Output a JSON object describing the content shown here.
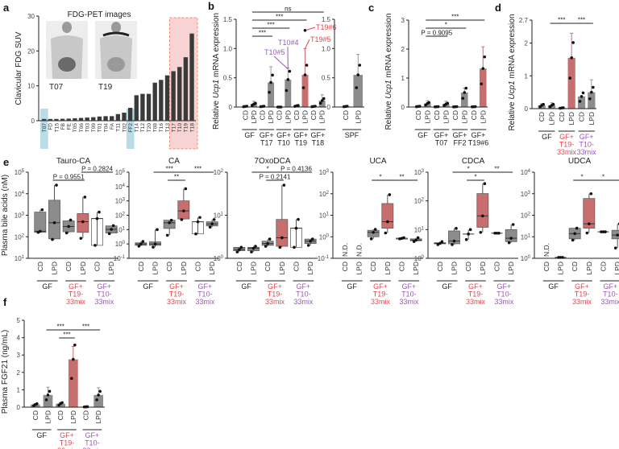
{
  "colors": {
    "gray": "#8c8c8c",
    "red": "#c86e6e",
    "red_text": "#e8474c",
    "purple_text": "#9b59b6",
    "blue_hl": "#a9d3e3",
    "pink_hl": "#f7d3d3",
    "pink_border": "#f08a6a"
  },
  "panel_labels": {
    "a": "a",
    "b": "b",
    "c": "c",
    "d": "d",
    "e": "e",
    "f": "f"
  },
  "chart_data": [
    {
      "id": "a",
      "type": "bar",
      "title": "FDG-PET images",
      "ylabel": "Clavicular FDG SUV",
      "ylim": [
        0,
        30
      ],
      "yticks": [
        0,
        10,
        20,
        30
      ],
      "categories": [
        "T07",
        "FD",
        "T15",
        "FB",
        "FE",
        "T05",
        "T06",
        "T03",
        "T09",
        "T01",
        "T04",
        "FA",
        "T11",
        "T02",
        "FF2",
        "T14",
        "T12",
        "T20",
        "T08",
        "T16",
        "T13",
        "T17",
        "T10",
        "T19",
        "T18"
      ],
      "values": [
        0.5,
        0.5,
        0.5,
        0.55,
        0.6,
        0.7,
        0.8,
        0.9,
        1.0,
        1.2,
        1.3,
        1.3,
        1.9,
        2.3,
        3.7,
        7.3,
        7.7,
        7.7,
        10.9,
        11.7,
        13.0,
        14.2,
        15.4,
        18.2,
        25.0
      ],
      "highlight_blue": [
        "T07",
        "FF2"
      ],
      "highlight_pink": [
        "T17",
        "T10",
        "T19",
        "T18"
      ],
      "inset_images": [
        "T07",
        "T19"
      ]
    },
    {
      "id": "b",
      "type": "bar",
      "ylabel_pre": "Relative ",
      "ylabel_gene": "Ucp1",
      "ylabel_post": " mRNA expression",
      "ylim": [
        0,
        1.5
      ],
      "yticks": [
        "0",
        "0.5",
        "1.0",
        "1.5"
      ],
      "ytickvals": [
        0,
        0.5,
        1.0,
        1.5
      ],
      "groups": [
        {
          "label": [
            "GF"
          ],
          "color": "black",
          "bars": [
            {
              "cat": "CD",
              "value": 0.01,
              "err": 0.01,
              "fill": "gray"
            },
            {
              "cat": "LPD",
              "value": 0.05,
              "err": 0.05,
              "fill": "gray"
            }
          ]
        },
        {
          "label": [
            "GF+",
            "T17"
          ],
          "color": "black",
          "bars": [
            {
              "cat": "CD",
              "value": 0.01,
              "err": 0.01,
              "fill": "gray"
            },
            {
              "cat": "LPD",
              "value": 0.42,
              "err": 0.27,
              "fill": "gray"
            }
          ]
        },
        {
          "label": [
            "GF+",
            "T10"
          ],
          "color": "black",
          "bars": [
            {
              "cat": "CD",
              "value": 0.0,
              "err": 0.0,
              "fill": "gray"
            },
            {
              "cat": "LPD",
              "value": 0.47,
              "err": 0.2,
              "fill": "gray"
            }
          ]
        },
        {
          "label": [
            "GF+",
            "T19"
          ],
          "color": "black",
          "bars": [
            {
              "cat": "CD",
              "value": 0.02,
              "err": 0.01,
              "fill": "gray"
            },
            {
              "cat": "LPD",
              "value": 0.55,
              "err": 0.45,
              "fill": "red"
            }
          ]
        },
        {
          "label": [
            "GF+",
            "T18"
          ],
          "color": "black",
          "bars": [
            {
              "cat": "CD",
              "value": 0.01,
              "err": 0.01,
              "fill": "gray"
            },
            {
              "cat": "LPD",
              "value": 0.11,
              "err": 0.1,
              "fill": "gray"
            }
          ]
        }
      ],
      "sig": [
        {
          "a": 1,
          "b": 3,
          "label": "***",
          "level": 0
        },
        {
          "a": 1,
          "b": 5,
          "label": "***",
          "level": 1
        },
        {
          "a": 1,
          "b": 7,
          "label": "***",
          "level": 2
        },
        {
          "a": 1,
          "b": 9,
          "label": "ns",
          "level": 3
        }
      ],
      "annotations": [
        {
          "text": "T10#5",
          "color": "purple"
        },
        {
          "text": "T10#4",
          "color": "purple"
        },
        {
          "text": "T19#6",
          "color": "red"
        },
        {
          "text": "T19#5",
          "color": "red"
        }
      ]
    },
    {
      "id": "b2",
      "type": "bar",
      "ylim": [
        0,
        1.5
      ],
      "yticks": [
        "0",
        "0.5",
        "1.0",
        "1.5"
      ],
      "ytickvals": [
        0,
        0.5,
        1.0,
        1.5
      ],
      "groups": [
        {
          "label": [
            "SPF"
          ],
          "color": "black",
          "bars": [
            {
              "cat": "CD",
              "value": 0.01,
              "err": 0.01,
              "fill": "gray"
            },
            {
              "cat": "LPD",
              "value": 0.55,
              "err": 0.35,
              "fill": "gray"
            }
          ]
        }
      ],
      "sig": []
    },
    {
      "id": "c",
      "type": "bar",
      "ylabel_pre": "Relative ",
      "ylabel_gene": "Ucp1",
      "ylabel_post": " mRNA expression",
      "ylim": [
        0,
        3
      ],
      "yticks": [
        "0",
        "1",
        "2",
        "3"
      ],
      "ytickvals": [
        0,
        1,
        2,
        3
      ],
      "groups": [
        {
          "label": [
            "GF"
          ],
          "color": "black",
          "bars": [
            {
              "cat": "CD",
              "value": 0.02,
              "err": 0.01,
              "fill": "gray"
            },
            {
              "cat": "LPD",
              "value": 0.12,
              "err": 0.1,
              "fill": "gray"
            }
          ]
        },
        {
          "label": [
            "GF+",
            "T07"
          ],
          "color": "black",
          "bars": [
            {
              "cat": "CD",
              "value": 0.01,
              "err": 0.01,
              "fill": "gray"
            },
            {
              "cat": "LPD",
              "value": 0.1,
              "err": 0.1,
              "fill": "gray"
            }
          ]
        },
        {
          "label": [
            "GF+",
            "FF2"
          ],
          "color": "black",
          "bars": [
            {
              "cat": "CD",
              "value": 0.01,
              "err": 0.01,
              "fill": "gray"
            },
            {
              "cat": "LPD",
              "value": 0.5,
              "err": 0.15,
              "fill": "gray"
            }
          ]
        },
        {
          "label": [
            "GF+",
            "T19#6"
          ],
          "color": "black",
          "bars": [
            {
              "cat": "CD",
              "value": 0.01,
              "err": 0.01,
              "fill": "gray"
            },
            {
              "cat": "LPD",
              "value": 1.33,
              "err": 0.75,
              "fill": "red"
            }
          ]
        }
      ],
      "sig": [
        {
          "a": 1,
          "b": 3,
          "label": "P = 0.9095",
          "level": 0
        },
        {
          "a": 1,
          "b": 5,
          "label": "*",
          "level": 1
        },
        {
          "a": 1,
          "b": 7,
          "label": "***",
          "level": 2
        }
      ]
    },
    {
      "id": "d",
      "type": "bar",
      "ylabel_pre": "Relative ",
      "ylabel_gene": "Ucp1",
      "ylabel_post": " mRNA expression",
      "ylim": [
        0,
        2.7
      ],
      "yticks": [
        "0",
        "1",
        "2",
        "2.7"
      ],
      "ytickvals": [
        0,
        1,
        2,
        2.7
      ],
      "groups": [
        {
          "label": [
            "GF"
          ],
          "color": "black",
          "bars": [
            {
              "cat": "CD",
              "value": 0.1,
              "err": 0.05,
              "fill": "gray"
            },
            {
              "cat": "LPD",
              "value": 0.1,
              "err": 0.08,
              "fill": "gray"
            }
          ]
        },
        {
          "label": [
            "GF+",
            "T19-",
            "33mix"
          ],
          "color": "red",
          "bars": [
            {
              "cat": "CD",
              "value": 0.02,
              "err": 0.01,
              "fill": "gray"
            },
            {
              "cat": "LPD",
              "value": 1.55,
              "err": 0.75,
              "fill": "red"
            }
          ]
        },
        {
          "label": [
            "GF+",
            "T10-",
            "33mix"
          ],
          "color": "purple",
          "bars": [
            {
              "cat": "CD",
              "value": 0.37,
              "err": 0.0,
              "fill": "gray"
            },
            {
              "cat": "LPD",
              "value": 0.5,
              "err": 0.38,
              "fill": "gray"
            }
          ]
        }
      ],
      "sig": [
        {
          "a": 1,
          "b": 3,
          "label": "***",
          "level": 0
        },
        {
          "a": 3,
          "b": 5,
          "label": "***",
          "level": 0
        }
      ]
    },
    {
      "id": "f",
      "type": "bar",
      "ylabel": "Plasma FGF21 (ng/mL)",
      "ylim": [
        0,
        5
      ],
      "yticks": [
        "0",
        "1",
        "2",
        "3",
        "4",
        "5"
      ],
      "ytickvals": [
        0,
        1,
        2,
        3,
        4,
        5
      ],
      "groups": [
        {
          "label": [
            "GF"
          ],
          "color": "black",
          "bars": [
            {
              "cat": "CD",
              "value": 0.15,
              "err": 0.05,
              "fill": "gray"
            },
            {
              "cat": "LPD",
              "value": 0.7,
              "err": 0.45,
              "fill": "gray"
            }
          ]
        },
        {
          "label": [
            "GF+",
            "T19-",
            "33mix"
          ],
          "color": "red",
          "bars": [
            {
              "cat": "CD",
              "value": 0.2,
              "err": 0.08,
              "fill": "gray"
            },
            {
              "cat": "LPD",
              "value": 2.75,
              "err": 0.75,
              "fill": "red"
            }
          ]
        },
        {
          "label": [
            "GF+",
            "T10-",
            "33mix"
          ],
          "color": "purple",
          "bars": [
            {
              "cat": "CD",
              "value": 0.02,
              "err": 0.0,
              "fill": "gray"
            },
            {
              "cat": "LPD",
              "value": 0.7,
              "err": 0.42,
              "fill": "gray"
            }
          ]
        }
      ],
      "sig": [
        {
          "a": 2,
          "b": 3,
          "label": "***",
          "level": 0
        },
        {
          "a": 1,
          "b": 3,
          "label": "***",
          "level": 1
        },
        {
          "a": 3,
          "b": 5,
          "label": "***",
          "level": 1
        }
      ]
    }
  ],
  "bile_acids": {
    "ylabel": "Plasma bile acids (nM)",
    "groups": [
      {
        "label": [
          "GF"
        ],
        "color": "black"
      },
      {
        "label": [
          "GF+",
          "T19-",
          "33mix"
        ],
        "color": "red"
      },
      {
        "label": [
          "GF+",
          "T10-",
          "33mix"
        ],
        "color": "purple"
      }
    ],
    "cats": [
      "CD",
      "LPD",
      "CD",
      "LPD",
      "CD",
      "LPD"
    ],
    "nd_label": "N.D.",
    "panels": [
      {
        "title": "Tauro-CA",
        "yexp": [
          1,
          5
        ],
        "boxes": [
          [
            160,
            160,
            180,
            1400,
            1800
          ],
          [
            75,
            80,
            450,
            5000,
            25000
          ],
          [
            150,
            170,
            300,
            550,
            600
          ],
          [
            85,
            160,
            500,
            1200,
            7000
          ],
          [
            40,
            40,
            700,
            700,
            1400
          ],
          [
            140,
            150,
            220,
            320,
            330
          ]
        ],
        "fills": [
          "gray",
          "gray",
          "gray",
          "red",
          "none",
          "gray"
        ],
        "nd": [],
        "sig": [
          {
            "a": 1,
            "b": 3,
            "label": "P = 0.9551",
            "level": 0
          },
          {
            "a": 3,
            "b": 5,
            "label": "P = 0.2824",
            "level": 0
          }
        ]
      },
      {
        "title": "CA",
        "yexp": [
          -1,
          5
        ],
        "boxes": [
          [
            0.7,
            0.8,
            1,
            1.2,
            1.5
          ],
          [
            0.6,
            0.8,
            1,
            1.4,
            10
          ],
          [
            4,
            12,
            30,
            45,
            45
          ],
          [
            50,
            55,
            200,
            1000,
            7000
          ],
          [
            5,
            5,
            35,
            35,
            70
          ],
          [
            15,
            18,
            25,
            35,
            50
          ]
        ],
        "fills": [
          "gray",
          "gray",
          "gray",
          "red",
          "none",
          "gray"
        ],
        "nd": [],
        "sig": [
          {
            "a": 1,
            "b": 3,
            "label": "***",
            "level": 1
          },
          {
            "a": 2,
            "b": 3,
            "label": "**",
            "level": 0
          },
          {
            "a": 3,
            "b": 5,
            "label": "***",
            "level": 1
          }
        ]
      },
      {
        "title": "7OxoDCA",
        "yexp": [
          0,
          2
        ],
        "boxes": [
          [
            1.4,
            1.5,
            1.6,
            1.8,
            1.8
          ],
          [
            1.4,
            1.5,
            1.7,
            1.8,
            1.9
          ],
          [
            1.9,
            2,
            2.2,
            2.5,
            2.8
          ],
          [
            1.8,
            1.9,
            3,
            8,
            50
          ],
          [
            1.8,
            1.8,
            5,
            5,
            8
          ],
          [
            2,
            2.2,
            2.5,
            2.8,
            2.8
          ]
        ],
        "fills": [
          "gray",
          "gray",
          "gray",
          "red",
          "none",
          "gray"
        ],
        "nd": [],
        "sig": [
          {
            "a": 1,
            "b": 3,
            "label": "*",
            "level": 1
          },
          {
            "a": 2,
            "b": 3,
            "label": "P = 0.2141",
            "level": 0
          },
          {
            "a": 3,
            "b": 5,
            "label": "P = 0.4136",
            "level": 1
          }
        ]
      },
      {
        "title": "UCA",
        "yexp": [
          -1,
          3
        ],
        "boxes": [
          null,
          null,
          [
            0.8,
            1,
            1.6,
            2,
            2.2
          ],
          [
            1.5,
            2.5,
            5,
            35,
            90
          ],
          [
            0.8,
            0.8,
            0.85,
            0.85,
            0.9
          ],
          [
            0.6,
            0.65,
            0.7,
            0.8,
            0.9
          ]
        ],
        "fills": [
          "gray",
          "gray",
          "gray",
          "red",
          "none",
          "gray"
        ],
        "nd": [
          0,
          1
        ],
        "sig": [
          {
            "a": 2,
            "b": 3,
            "label": "*",
            "level": 0
          },
          {
            "a": 3,
            "b": 5,
            "label": "**",
            "level": 0
          }
        ]
      },
      {
        "title": "CDCA",
        "yexp": [
          0,
          3
        ],
        "boxes": [
          [
            3,
            3.2,
            3.3,
            3.5,
            3.8
          ],
          [
            3,
            3.2,
            4,
            9,
            11
          ],
          [
            4.5,
            7,
            7,
            7,
            10
          ],
          [
            8,
            12,
            30,
            180,
            400
          ],
          [
            7.5,
            7.5,
            7.5,
            7.5,
            7.5
          ],
          [
            3.5,
            3.8,
            5,
            10,
            15
          ]
        ],
        "fills": [
          "none",
          "gray",
          "none",
          "red",
          "none",
          "gray"
        ],
        "nd": [],
        "sig": [
          {
            "a": 1,
            "b": 3,
            "label": "*",
            "level": 1
          },
          {
            "a": 2,
            "b": 3,
            "label": "*",
            "level": 0
          },
          {
            "a": 3,
            "b": 5,
            "label": "**",
            "level": 1
          }
        ]
      },
      {
        "title": "UDCA",
        "yexp": [
          0,
          4
        ],
        "boxes": [
          null,
          [
            1.1,
            1.1,
            1.1,
            1.1,
            1.1
          ],
          [
            7,
            8,
            14,
            25,
            25
          ],
          [
            15,
            25,
            40,
            600,
            1000
          ],
          [
            17,
            17,
            17,
            17,
            17
          ],
          [
            3,
            8,
            12,
            20,
            40
          ]
        ],
        "fills": [
          "gray",
          "none",
          "gray",
          "red",
          "none",
          "gray"
        ],
        "nd": [
          0
        ],
        "sig": [
          {
            "a": 2,
            "b": 3,
            "label": "*",
            "level": 0
          },
          {
            "a": 3,
            "b": 5,
            "label": "*",
            "level": 0
          }
        ]
      }
    ]
  }
}
